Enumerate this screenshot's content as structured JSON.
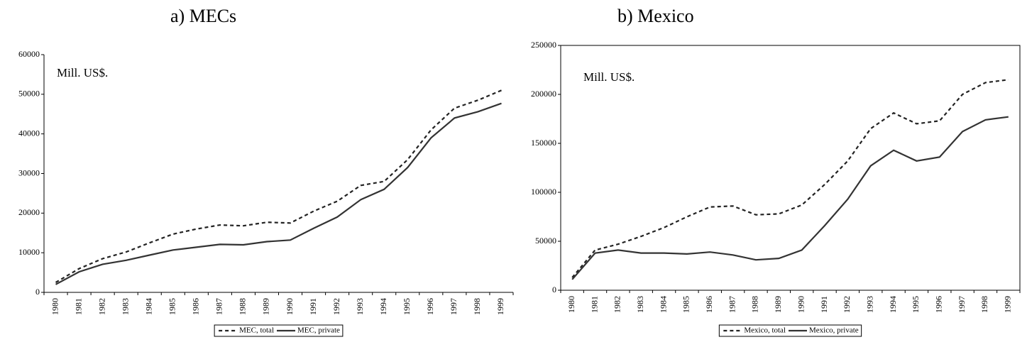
{
  "chart_data": [
    {
      "type": "line",
      "title": "a)   MECs",
      "annotation": "Mill. US$.",
      "categories": [
        "1980",
        "1981",
        "1982",
        "1983",
        "1984",
        "1985",
        "1986",
        "1987",
        "1988",
        "1989",
        "1990",
        "1991",
        "1992",
        "1993",
        "1994",
        "1995",
        "1996",
        "1997",
        "1998",
        "1999"
      ],
      "series": [
        {
          "name": "MEC, total",
          "color": "#222222",
          "style": "dashed",
          "values": [
            2500,
            6000,
            8500,
            10200,
            12500,
            14700,
            16000,
            17000,
            16800,
            17700,
            17500,
            20500,
            23000,
            27000,
            28000,
            33500,
            41000,
            46500,
            48500,
            51000
          ]
        },
        {
          "name": "MEC, private",
          "color": "#333333",
          "style": "solid",
          "values": [
            2000,
            5200,
            7100,
            8100,
            9400,
            10700,
            11400,
            12100,
            12000,
            12800,
            13200,
            16200,
            19000,
            23400,
            26000,
            31500,
            39000,
            44000,
            45600,
            47700
          ]
        }
      ],
      "ylim": [
        0,
        60000
      ],
      "yticks": [
        0,
        10000,
        20000,
        30000,
        40000,
        50000,
        60000
      ],
      "frame": false
    },
    {
      "type": "line",
      "title": "b) Mexico",
      "annotation": "Mill. US$.",
      "categories": [
        "1980",
        "1981",
        "1982",
        "1983",
        "1984",
        "1985",
        "1986",
        "1987",
        "1988",
        "1989",
        "1990",
        "1991",
        "1992",
        "1993",
        "1994",
        "1995",
        "1996",
        "1997",
        "1998",
        "1999"
      ],
      "series": [
        {
          "name": "Mexico, total",
          "color": "#222222",
          "style": "dashed",
          "values": [
            13000,
            41000,
            47000,
            55000,
            64000,
            75000,
            85000,
            86000,
            77000,
            78000,
            87000,
            108000,
            132000,
            165000,
            181000,
            170000,
            173000,
            200000,
            212000,
            215000
          ]
        },
        {
          "name": "Mexico, private",
          "color": "#333333",
          "style": "solid",
          "values": [
            11000,
            38000,
            41000,
            38000,
            38000,
            37000,
            39000,
            36000,
            31000,
            32500,
            41000,
            66000,
            93000,
            127000,
            143000,
            132000,
            136000,
            162000,
            174000,
            177000
          ]
        }
      ],
      "ylim": [
        0,
        250000
      ],
      "yticks": [
        0,
        50000,
        100000,
        150000,
        200000,
        250000
      ],
      "frame": true
    }
  ]
}
